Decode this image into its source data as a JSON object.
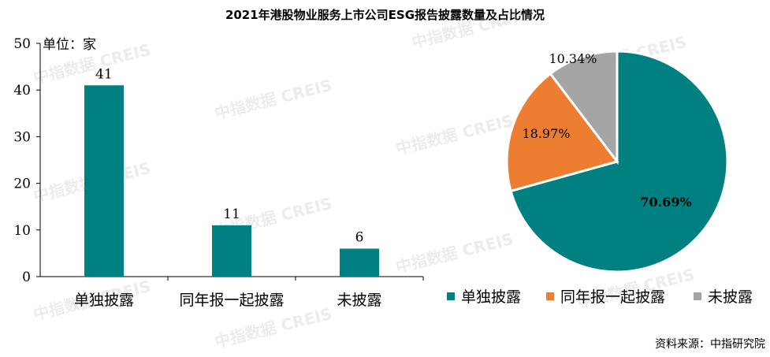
{
  "title": "2021年港股物业服务上市公司ESG报告披露数量及占比情况",
  "unit_label": "单位：家",
  "source": "资料来源：中指研究院",
  "watermark": "中指数据 CREIS",
  "colors": {
    "teal": "#008080",
    "orange": "#ED7D31",
    "gray": "#A5A5A5"
  },
  "chart_data": [
    {
      "type": "bar",
      "categories": [
        "单独披露",
        "同年报一起披露",
        "未披露"
      ],
      "values": [
        41,
        11,
        6
      ],
      "data_labels": [
        "41",
        "11",
        "6"
      ],
      "ylim": [
        0,
        50
      ],
      "yticks": [
        0,
        10,
        20,
        30,
        40,
        50
      ],
      "ytick_labels": [
        "0",
        "10",
        "20",
        "30",
        "40",
        "50"
      ],
      "ylabel": "单位：家",
      "grid": false
    },
    {
      "type": "pie",
      "labels": [
        "单独披露",
        "同年报一起披露",
        "未披露"
      ],
      "values": [
        70.69,
        18.97,
        10.34
      ],
      "data_labels": [
        "70.69%",
        "18.97%",
        "10.34%"
      ],
      "legend_position": "bottom"
    }
  ]
}
